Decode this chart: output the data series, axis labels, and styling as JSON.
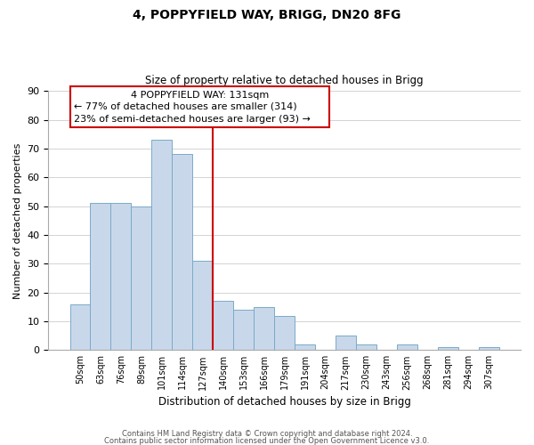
{
  "title1": "4, POPPYFIELD WAY, BRIGG, DN20 8FG",
  "title2": "Size of property relative to detached houses in Brigg",
  "xlabel": "Distribution of detached houses by size in Brigg",
  "ylabel": "Number of detached properties",
  "categories": [
    "50sqm",
    "63sqm",
    "76sqm",
    "89sqm",
    "101sqm",
    "114sqm",
    "127sqm",
    "140sqm",
    "153sqm",
    "166sqm",
    "179sqm",
    "191sqm",
    "204sqm",
    "217sqm",
    "230sqm",
    "243sqm",
    "256sqm",
    "268sqm",
    "281sqm",
    "294sqm",
    "307sqm"
  ],
  "values": [
    16,
    51,
    51,
    50,
    73,
    68,
    31,
    17,
    14,
    15,
    12,
    2,
    0,
    5,
    2,
    0,
    2,
    0,
    1,
    0,
    1
  ],
  "bar_color": "#c8d8ea",
  "bar_edge_color": "#7aaac8",
  "vline_color": "#cc0000",
  "ylim": [
    0,
    90
  ],
  "yticks": [
    0,
    10,
    20,
    30,
    40,
    50,
    60,
    70,
    80,
    90
  ],
  "annotation_line1": "4 POPPYFIELD WAY: 131sqm",
  "annotation_line2": "← 77% of detached houses are smaller (314)",
  "annotation_line3": "23% of semi-detached houses are larger (93) →",
  "footer1": "Contains HM Land Registry data © Crown copyright and database right 2024.",
  "footer2": "Contains public sector information licensed under the Open Government Licence v3.0."
}
